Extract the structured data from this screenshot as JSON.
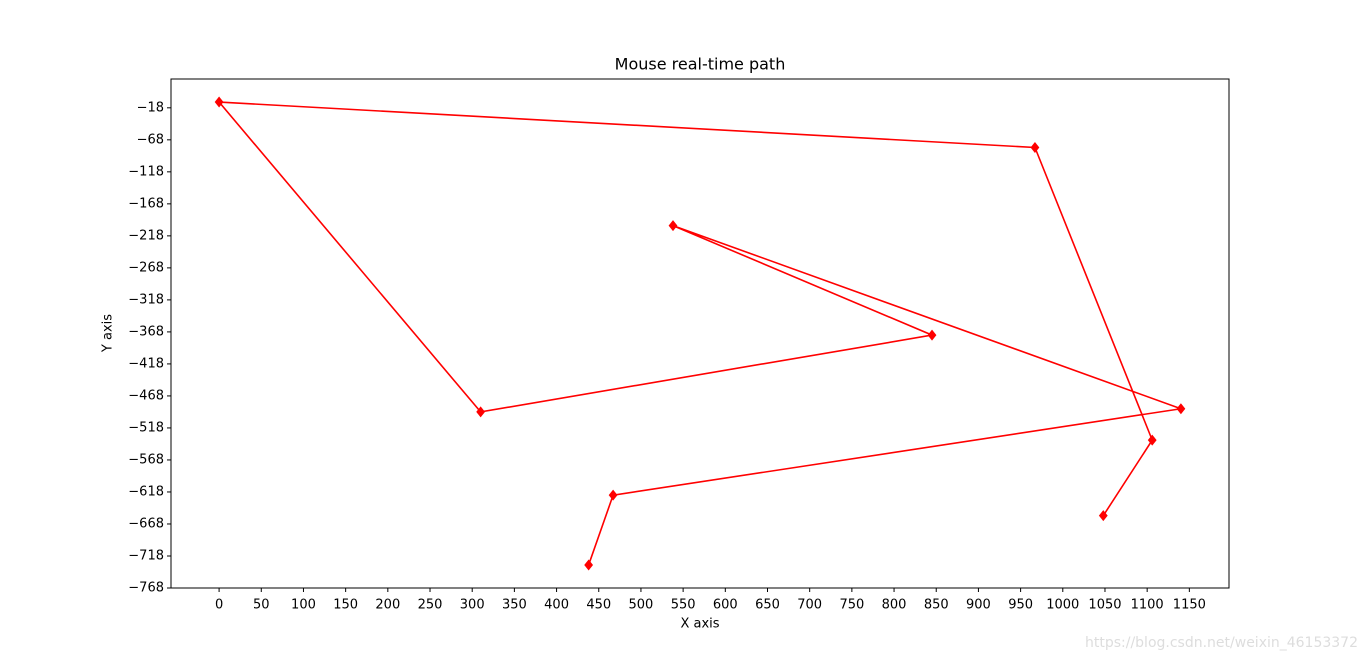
{
  "chart_data": {
    "type": "line",
    "title": "Mouse real-time path",
    "x_label": "X axis",
    "y_label": "Y axis",
    "x": [
      1048,
      1106,
      967,
      0,
      310,
      845,
      538,
      1140,
      467,
      438
    ],
    "series": [
      {
        "color": "#ff0000",
        "marker": "diamond",
        "values": [
          -655,
          -537,
          -80,
          -9,
          -493,
          -373,
          -202,
          -488,
          -623,
          -732
        ]
      }
    ],
    "xlim": [
      -57,
      1197
    ],
    "ylim": [
      -768,
      27
    ],
    "xticks": [
      0,
      50,
      100,
      150,
      200,
      250,
      300,
      350,
      400,
      450,
      500,
      550,
      600,
      650,
      700,
      750,
      800,
      850,
      900,
      950,
      1000,
      1050,
      1100,
      1150
    ],
    "yticks": [
      {
        "value": -18,
        "label": "−18"
      },
      {
        "value": -68,
        "label": "−68"
      },
      {
        "value": -118,
        "label": "−118"
      },
      {
        "value": -168,
        "label": "−168"
      },
      {
        "value": -218,
        "label": "−218"
      },
      {
        "value": -268,
        "label": "−268"
      },
      {
        "value": -318,
        "label": "−318"
      },
      {
        "value": -368,
        "label": "−368"
      },
      {
        "value": -418,
        "label": "−418"
      },
      {
        "value": -468,
        "label": "−468"
      },
      {
        "value": -518,
        "label": "−518"
      },
      {
        "value": -568,
        "label": "−568"
      },
      {
        "value": -618,
        "label": "−618"
      },
      {
        "value": -668,
        "label": "−668"
      },
      {
        "value": -718,
        "label": "−718"
      },
      {
        "value": -768,
        "label": "−768"
      }
    ],
    "watermark": "https://blog.csdn.net/weixin_46153372"
  }
}
